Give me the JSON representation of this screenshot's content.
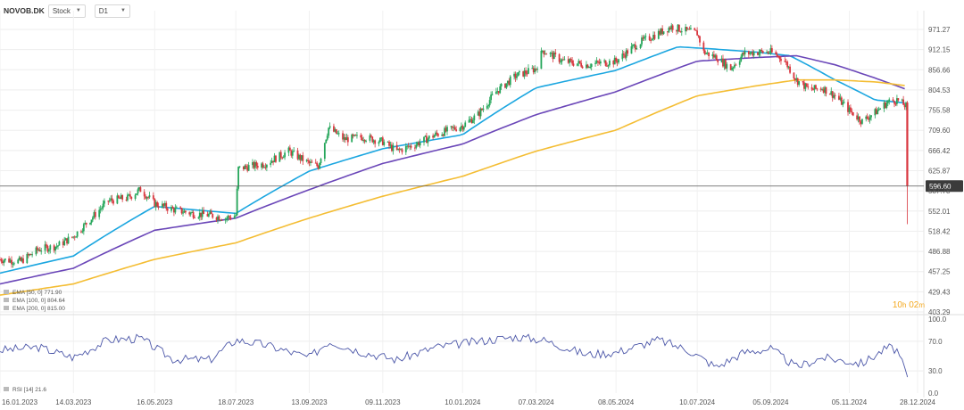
{
  "toolbar": {
    "symbol": "NOVOB.DK",
    "type_label": "Stock",
    "timeframe": "D1"
  },
  "colors": {
    "up": "#26a65b",
    "down": "#d9363e",
    "ema50": "#1ba6e0",
    "ema100": "#6a46b8",
    "ema200": "#f4bd33",
    "rsi": "#4b56a8",
    "price_line": "#555555",
    "price_label_bg": "#3b3b3b",
    "countdown": "#f4a81e"
  },
  "price_label": "596.60",
  "countdown": {
    "hours": "10",
    "h_unit": "h",
    "minutes": "02",
    "m_unit": "m"
  },
  "chart_data": {
    "type": "candlestick",
    "price_axis": {
      "ticks": [
        "971.27",
        "912.15",
        "856.66",
        "804.53",
        "755.58",
        "709.60",
        "666.42",
        "625.87",
        "587.78",
        "552.01",
        "518.42",
        "486.88",
        "457.25",
        "429.43",
        "403.29"
      ],
      "scale": "log",
      "ylim": [
        403.29,
        971.27
      ]
    },
    "x_axis": {
      "ticks": [
        "16.01.2023",
        "14.03.2023",
        "16.05.2023",
        "18.07.2023",
        "13.09.2023",
        "09.11.2023",
        "10.01.2024",
        "07.03.2024",
        "08.05.2024",
        "10.07.2024",
        "05.09.2024",
        "05.11.2024",
        "28.12.2024"
      ]
    },
    "price_path": [
      [
        "2023-01-16",
        475
      ],
      [
        "2023-02-01",
        472
      ],
      [
        "2023-02-15",
        490
      ],
      [
        "2023-03-01",
        495
      ],
      [
        "2023-03-14",
        510
      ],
      [
        "2023-03-28",
        540
      ],
      [
        "2023-04-10",
        570
      ],
      [
        "2023-04-25",
        575
      ],
      [
        "2023-05-05",
        590
      ],
      [
        "2023-05-16",
        565
      ],
      [
        "2023-05-30",
        555
      ],
      [
        "2023-06-14",
        548
      ],
      [
        "2023-06-28",
        545
      ],
      [
        "2023-07-10",
        540
      ],
      [
        "2023-07-18",
        545
      ],
      [
        "2023-07-20",
        630
      ],
      [
        "2023-08-10",
        640
      ],
      [
        "2023-08-28",
        665
      ],
      [
        "2023-09-13",
        640
      ],
      [
        "2023-09-20",
        635
      ],
      [
        "2023-09-28",
        715
      ],
      [
        "2023-10-10",
        690
      ],
      [
        "2023-10-25",
        695
      ],
      [
        "2023-11-09",
        685
      ],
      [
        "2023-11-20",
        665
      ],
      [
        "2023-12-05",
        680
      ],
      [
        "2023-12-20",
        700
      ],
      [
        "2024-01-10",
        720
      ],
      [
        "2024-01-22",
        745
      ],
      [
        "2024-02-05",
        800
      ],
      [
        "2024-02-20",
        840
      ],
      [
        "2024-03-07",
        860
      ],
      [
        "2024-03-12",
        910
      ],
      [
        "2024-03-28",
        880
      ],
      [
        "2024-04-15",
        870
      ],
      [
        "2024-05-08",
        880
      ],
      [
        "2024-05-25",
        930
      ],
      [
        "2024-06-10",
        960
      ],
      [
        "2024-06-20",
        980
      ],
      [
        "2024-07-03",
        965
      ],
      [
        "2024-07-10",
        960
      ],
      [
        "2024-07-15",
        905
      ],
      [
        "2024-07-25",
        890
      ],
      [
        "2024-08-05",
        860
      ],
      [
        "2024-08-15",
        900
      ],
      [
        "2024-08-25",
        905
      ],
      [
        "2024-09-05",
        905
      ],
      [
        "2024-09-15",
        885
      ],
      [
        "2024-09-25",
        830
      ],
      [
        "2024-10-05",
        805
      ],
      [
        "2024-10-15",
        810
      ],
      [
        "2024-10-25",
        790
      ],
      [
        "2024-11-05",
        755
      ],
      [
        "2024-11-15",
        730
      ],
      [
        "2024-11-25",
        750
      ],
      [
        "2024-12-05",
        775
      ],
      [
        "2024-12-12",
        780
      ],
      [
        "2024-12-19",
        765
      ],
      [
        "2024-12-20",
        596.6
      ]
    ],
    "ema_levels": [
      {
        "label": "EMA",
        "params": "[50, 0]",
        "value": "771.90",
        "color_key": "ema50",
        "path": [
          [
            "2023-01-16",
            455
          ],
          [
            "2023-03-14",
            480
          ],
          [
            "2023-05-16",
            560
          ],
          [
            "2023-07-18",
            548
          ],
          [
            "2023-09-13",
            625
          ],
          [
            "2023-11-09",
            670
          ],
          [
            "2024-01-10",
            700
          ],
          [
            "2024-03-07",
            810
          ],
          [
            "2024-05-08",
            855
          ],
          [
            "2024-06-25",
            920
          ],
          [
            "2024-07-18",
            915
          ],
          [
            "2024-08-25",
            905
          ],
          [
            "2024-09-20",
            895
          ],
          [
            "2024-10-25",
            830
          ],
          [
            "2024-11-25",
            780
          ],
          [
            "2024-12-20",
            772
          ]
        ]
      },
      {
        "label": "EMA",
        "params": "[100, 0]",
        "value": "804.64",
        "color_key": "ema100",
        "path": [
          [
            "2023-01-16",
            440
          ],
          [
            "2023-03-14",
            462
          ],
          [
            "2023-05-16",
            520
          ],
          [
            "2023-07-18",
            540
          ],
          [
            "2023-09-13",
            590
          ],
          [
            "2023-11-09",
            640
          ],
          [
            "2024-01-10",
            680
          ],
          [
            "2024-03-07",
            745
          ],
          [
            "2024-05-08",
            800
          ],
          [
            "2024-07-10",
            880
          ],
          [
            "2024-08-25",
            890
          ],
          [
            "2024-09-25",
            895
          ],
          [
            "2024-10-25",
            870
          ],
          [
            "2024-11-25",
            835
          ],
          [
            "2024-12-20",
            805
          ]
        ]
      },
      {
        "label": "EMA",
        "params": "[200, 0]",
        "value": "815.00",
        "color_key": "ema200",
        "path": [
          [
            "2023-01-16",
            425
          ],
          [
            "2023-03-14",
            440
          ],
          [
            "2023-05-16",
            475
          ],
          [
            "2023-07-18",
            500
          ],
          [
            "2023-09-13",
            540
          ],
          [
            "2023-11-09",
            578
          ],
          [
            "2024-01-10",
            615
          ],
          [
            "2024-03-07",
            665
          ],
          [
            "2024-05-08",
            710
          ],
          [
            "2024-07-10",
            790
          ],
          [
            "2024-08-25",
            815
          ],
          [
            "2024-09-25",
            830
          ],
          [
            "2024-10-25",
            830
          ],
          [
            "2024-11-25",
            825
          ],
          [
            "2024-12-20",
            815
          ]
        ]
      }
    ],
    "rsi": {
      "label": "RSI",
      "params": "[14]",
      "value": "21.6",
      "axis_ticks": [
        "100.0",
        "70.0",
        "30.0",
        "0.0"
      ],
      "ylim": [
        0,
        100
      ],
      "path": [
        [
          "2023-01-16",
          58
        ],
        [
          "2023-02-15",
          62
        ],
        [
          "2023-03-14",
          48
        ],
        [
          "2023-04-10",
          72
        ],
        [
          "2023-05-05",
          74
        ],
        [
          "2023-05-30",
          46
        ],
        [
          "2023-06-28",
          45
        ],
        [
          "2023-07-18",
          72
        ],
        [
          "2023-08-10",
          65
        ],
        [
          "2023-09-13",
          48
        ],
        [
          "2023-09-28",
          70
        ],
        [
          "2023-10-25",
          55
        ],
        [
          "2023-11-20",
          45
        ],
        [
          "2023-12-20",
          62
        ],
        [
          "2024-01-22",
          70
        ],
        [
          "2024-02-20",
          76
        ],
        [
          "2024-03-12",
          72
        ],
        [
          "2024-04-15",
          52
        ],
        [
          "2024-05-08",
          55
        ],
        [
          "2024-06-10",
          72
        ],
        [
          "2024-07-03",
          58
        ],
        [
          "2024-07-25",
          35
        ],
        [
          "2024-08-15",
          55
        ],
        [
          "2024-09-05",
          60
        ],
        [
          "2024-09-25",
          35
        ],
        [
          "2024-10-15",
          48
        ],
        [
          "2024-11-15",
          40
        ],
        [
          "2024-12-05",
          62
        ],
        [
          "2024-12-12",
          58
        ],
        [
          "2024-12-20",
          21.6
        ]
      ]
    }
  }
}
